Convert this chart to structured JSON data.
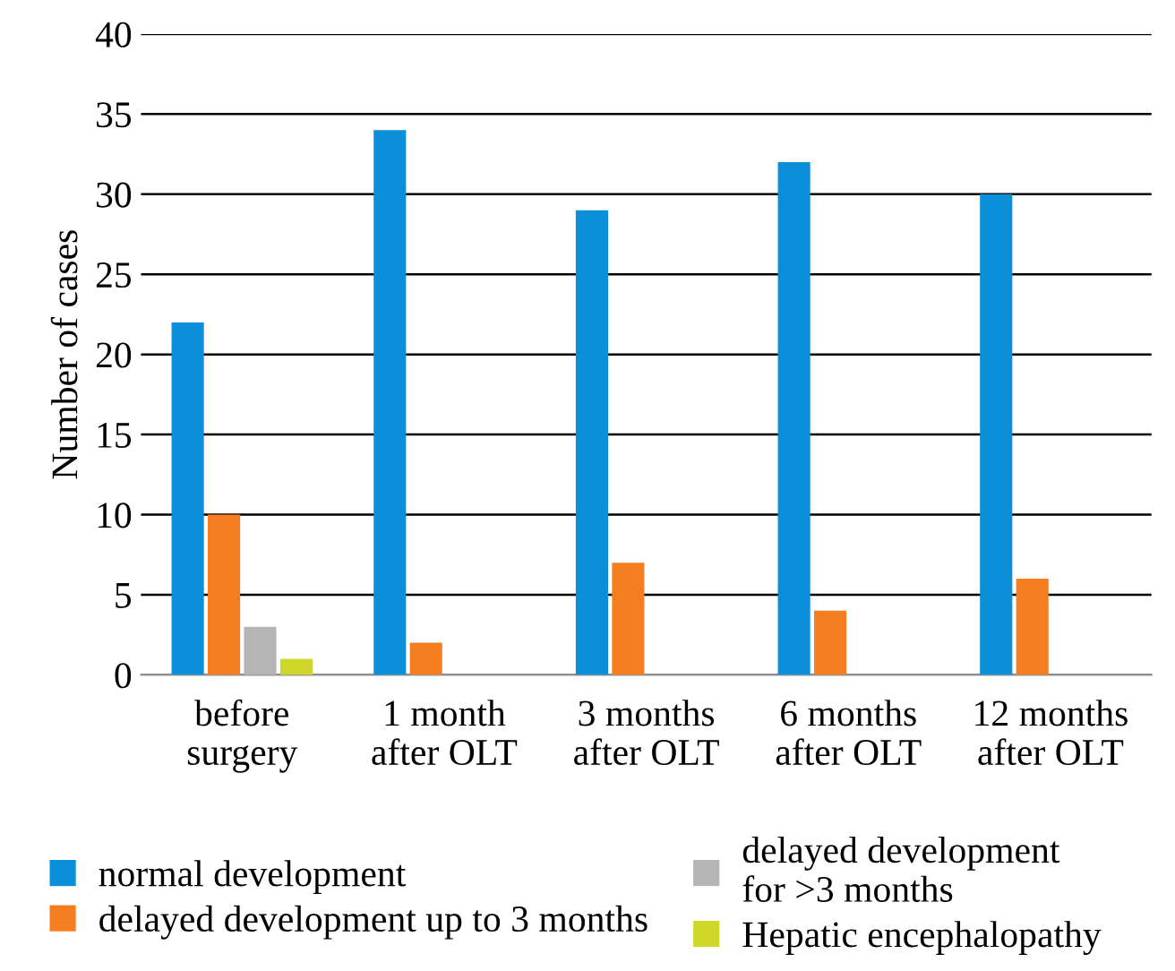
{
  "chart_data": {
    "type": "bar",
    "ylabel": "Number of cases",
    "categories": [
      "before\nsurgery",
      "1 month\nafter OLT",
      "3 months\nafter OLT",
      "6 months\nafter OLT",
      "12 months\nafter OLT"
    ],
    "series": [
      {
        "name": "normal development",
        "color": "#0a8fd8",
        "values": [
          22,
          34,
          29,
          32,
          30
        ]
      },
      {
        "name": "delayed development up to 3 months",
        "color": "#f57f20",
        "values": [
          10,
          2,
          7,
          4,
          6
        ]
      },
      {
        "name": "delayed development\nfor >3 months",
        "color": "#b5b5b5",
        "values": [
          3,
          null,
          null,
          null,
          null
        ]
      },
      {
        "name": "Hepatic encephalopathy",
        "color": "#cfd82a",
        "values": [
          1,
          null,
          null,
          null,
          null
        ]
      }
    ],
    "ylim": [
      0,
      40
    ],
    "yticks": [
      0,
      5,
      10,
      15,
      20,
      25,
      30,
      35,
      40
    ],
    "grid": "y",
    "legend": "bottom"
  }
}
